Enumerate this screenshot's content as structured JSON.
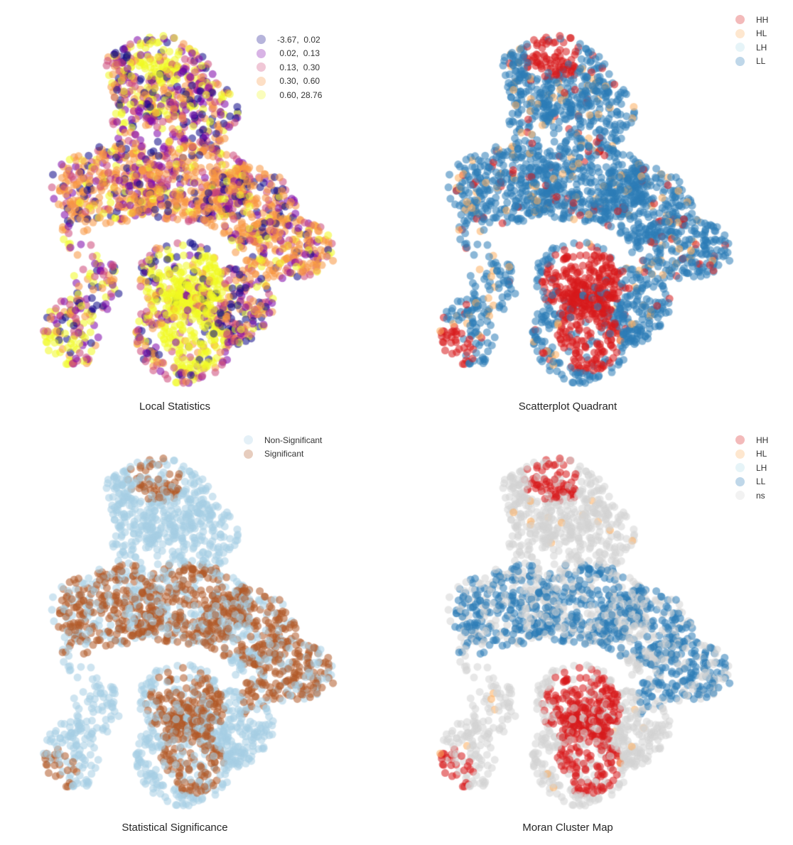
{
  "chart_data": [
    {
      "type": "scatter",
      "title": "Local Statistics",
      "xlabel": "",
      "ylabel": "",
      "grid": false,
      "axes": "off",
      "legend_position": "upper right",
      "legend": [
        {
          "label": "-3.67,  0.02",
          "color": "#0d0887"
        },
        {
          "label": " 0.02,  0.13",
          "color": "#7e03a8"
        },
        {
          "label": " 0.13,  0.30",
          "color": "#cc4778"
        },
        {
          "label": " 0.30,  0.60",
          "color": "#f89540"
        },
        {
          "label": " 0.60, 28.76",
          "color": "#f0f921"
        }
      ],
      "colormap": "plasma",
      "classification": "quantiles (5 classes)",
      "value_range": [
        -3.67,
        28.76
      ]
    },
    {
      "type": "scatter",
      "title": "Scatterplot Quadrant",
      "xlabel": "",
      "ylabel": "",
      "grid": false,
      "axes": "off",
      "legend_position": "upper right",
      "legend": [
        {
          "label": "HH",
          "color": "#d7191c"
        },
        {
          "label": "HL",
          "color": "#fdae61"
        },
        {
          "label": "LH",
          "color": "#abd9e9"
        },
        {
          "label": "LL",
          "color": "#2c7bb6"
        }
      ]
    },
    {
      "type": "scatter",
      "title": "Statistical Significance",
      "xlabel": "",
      "ylabel": "",
      "grid": false,
      "axes": "off",
      "legend_position": "upper right",
      "legend": [
        {
          "label": "Non-Significant",
          "color": "#a6cee3"
        },
        {
          "label": "Significant",
          "color": "#b15928"
        }
      ]
    },
    {
      "type": "scatter",
      "title": "Moran Cluster Map",
      "xlabel": "",
      "ylabel": "",
      "grid": false,
      "axes": "off",
      "legend_position": "upper right",
      "legend": [
        {
          "label": "HH",
          "color": "#d7191c"
        },
        {
          "label": "HL",
          "color": "#fdae61"
        },
        {
          "label": "LH",
          "color": "#abd9e9"
        },
        {
          "label": "LL",
          "color": "#2c7bb6"
        },
        {
          "label": "ns",
          "color": "#d3d3d3"
        }
      ]
    }
  ],
  "panels": [
    {
      "title": "Local Statistics"
    },
    {
      "title": "Scatterplot Quadrant"
    },
    {
      "title": "Statistical Significance"
    },
    {
      "title": "Moran Cluster Map"
    }
  ]
}
